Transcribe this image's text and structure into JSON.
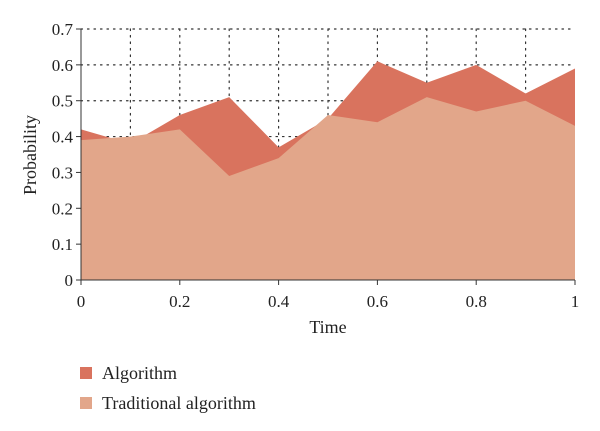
{
  "chart_data": {
    "type": "area",
    "xlabel": "Time",
    "ylabel": "Probability",
    "x": [
      0,
      0.1,
      0.2,
      0.3,
      0.4,
      0.5,
      0.6,
      0.7,
      0.8,
      0.9,
      1.0
    ],
    "xlim": [
      0,
      1
    ],
    "ylim": [
      0,
      0.7
    ],
    "x_ticks": [
      "0",
      "0.2",
      "0.4",
      "0.6",
      "0.8",
      "1"
    ],
    "y_ticks": [
      "0",
      "0.1",
      "0.2",
      "0.3",
      "0.4",
      "0.5",
      "0.6",
      "0.7"
    ],
    "grid": "dotted",
    "legend_position": "bottom-left",
    "series": [
      {
        "name": "Algorithm",
        "color": "#d9735e",
        "values": [
          0.42,
          0.38,
          0.46,
          0.51,
          0.37,
          0.45,
          0.61,
          0.55,
          0.6,
          0.52,
          0.59
        ]
      },
      {
        "name": "Traditional algorithm",
        "color": "#e2a68a",
        "values": [
          0.39,
          0.4,
          0.42,
          0.29,
          0.34,
          0.46,
          0.44,
          0.51,
          0.47,
          0.5,
          0.43
        ]
      }
    ]
  }
}
